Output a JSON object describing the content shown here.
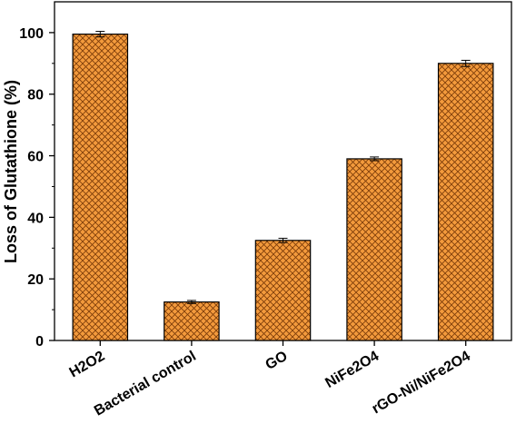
{
  "chart_data": {
    "type": "bar",
    "title": "",
    "xlabel": "",
    "ylabel": "Loss of Glutathione (%)",
    "ylim": [
      0,
      110
    ],
    "yticks": [
      0,
      20,
      40,
      60,
      80,
      100
    ],
    "ytick_labels": [
      "0",
      "20",
      "40",
      "60",
      "80",
      "100"
    ],
    "categories": [
      "H2O2",
      "Bacterial control",
      "GO",
      "NiFe2O4",
      "rGO-Ni/NiFe2O4"
    ],
    "values": [
      99.5,
      12.5,
      32.5,
      59,
      90
    ],
    "errors": [
      0.9,
      0.5,
      0.7,
      0.6,
      1.0
    ],
    "bar_color": "#f39a3c",
    "hatch": "crosshatch",
    "grid": false,
    "legend": "none"
  }
}
